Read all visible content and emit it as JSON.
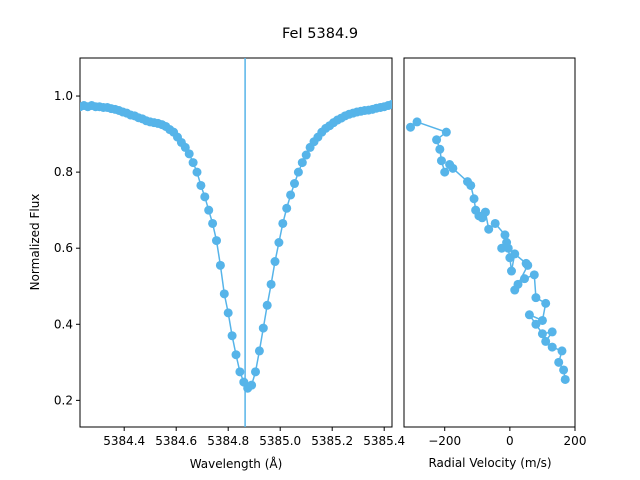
{
  "chart_data": {
    "title": "FeI 5384.9",
    "accent_color": "#56b4e9",
    "panels": [
      {
        "type": "line",
        "xlabel": "Wavelength (Å)",
        "ylabel": "Normalized Flux",
        "xlim": [
          5384.23,
          5385.43
        ],
        "ylim": [
          0.13,
          1.1
        ],
        "xticks": [
          5384.4,
          5384.6,
          5384.8,
          5385.0,
          5385.2,
          5385.4
        ],
        "xtick_labels": [
          "5384.4",
          "5384.6",
          "5384.8",
          "5385.0",
          "5385.2",
          "5385.4"
        ],
        "yticks": [
          0.2,
          0.4,
          0.6,
          0.8,
          1.0
        ],
        "ytick_labels": [
          "0.2",
          "0.4",
          "0.6",
          "0.8",
          "1.0"
        ],
        "vline_x": 5384.865,
        "x": [
          5384.23,
          5384.245,
          5384.26,
          5384.275,
          5384.29,
          5384.305,
          5384.32,
          5384.335,
          5384.35,
          5384.365,
          5384.38,
          5384.395,
          5384.41,
          5384.425,
          5384.44,
          5384.455,
          5384.47,
          5384.485,
          5384.5,
          5384.515,
          5384.53,
          5384.545,
          5384.56,
          5384.575,
          5384.59,
          5384.605,
          5384.62,
          5384.635,
          5384.65,
          5384.665,
          5384.68,
          5384.695,
          5384.71,
          5384.725,
          5384.74,
          5384.755,
          5384.77,
          5384.785,
          5384.8,
          5384.815,
          5384.83,
          5384.845,
          5384.86,
          5384.875,
          5384.89,
          5384.905,
          5384.92,
          5384.935,
          5384.95,
          5384.965,
          5384.98,
          5384.995,
          5385.01,
          5385.025,
          5385.04,
          5385.055,
          5385.07,
          5385.085,
          5385.1,
          5385.115,
          5385.13,
          5385.145,
          5385.16,
          5385.175,
          5385.19,
          5385.205,
          5385.22,
          5385.235,
          5385.25,
          5385.265,
          5385.28,
          5385.295,
          5385.31,
          5385.325,
          5385.34,
          5385.355,
          5385.37,
          5385.385,
          5385.4,
          5385.415,
          5385.43
        ],
        "y": [
          0.972,
          0.975,
          0.972,
          0.975,
          0.972,
          0.972,
          0.97,
          0.97,
          0.967,
          0.965,
          0.962,
          0.958,
          0.955,
          0.95,
          0.948,
          0.943,
          0.94,
          0.935,
          0.932,
          0.93,
          0.928,
          0.925,
          0.92,
          0.912,
          0.905,
          0.892,
          0.878,
          0.865,
          0.848,
          0.825,
          0.8,
          0.765,
          0.735,
          0.7,
          0.665,
          0.62,
          0.555,
          0.48,
          0.43,
          0.37,
          0.32,
          0.275,
          0.248,
          0.232,
          0.24,
          0.275,
          0.33,
          0.39,
          0.45,
          0.505,
          0.565,
          0.615,
          0.665,
          0.705,
          0.74,
          0.77,
          0.8,
          0.825,
          0.845,
          0.865,
          0.88,
          0.892,
          0.905,
          0.915,
          0.922,
          0.93,
          0.937,
          0.942,
          0.948,
          0.952,
          0.955,
          0.958,
          0.96,
          0.962,
          0.963,
          0.965,
          0.968,
          0.97,
          0.972,
          0.975,
          0.978
        ]
      },
      {
        "type": "line",
        "xlabel": "Radial Velocity (m/s)",
        "xlim": [
          -325,
          200
        ],
        "ylim": [
          0.13,
          1.1
        ],
        "xticks": [
          -200,
          0,
          200
        ],
        "xtick_labels": [
          "−200",
          "0",
          "200"
        ],
        "x": [
          -305,
          -285,
          -195,
          -225,
          -215,
          -210,
          -200,
          -185,
          -175,
          -130,
          -120,
          -110,
          -105,
          -95,
          -85,
          -75,
          -65,
          -45,
          -15,
          -10,
          -25,
          -5,
          0,
          5,
          15,
          50,
          55,
          25,
          15,
          45,
          75,
          80,
          110,
          100,
          60,
          80,
          100,
          130,
          110,
          130,
          160,
          150,
          165,
          170
        ],
        "y": [
          0.918,
          0.932,
          0.905,
          0.885,
          0.86,
          0.83,
          0.8,
          0.82,
          0.81,
          0.775,
          0.765,
          0.73,
          0.7,
          0.685,
          0.68,
          0.695,
          0.65,
          0.665,
          0.635,
          0.615,
          0.6,
          0.6,
          0.575,
          0.54,
          0.585,
          0.56,
          0.555,
          0.505,
          0.49,
          0.52,
          0.53,
          0.47,
          0.455,
          0.41,
          0.425,
          0.4,
          0.375,
          0.38,
          0.355,
          0.34,
          0.33,
          0.3,
          0.28,
          0.255
        ]
      }
    ]
  }
}
